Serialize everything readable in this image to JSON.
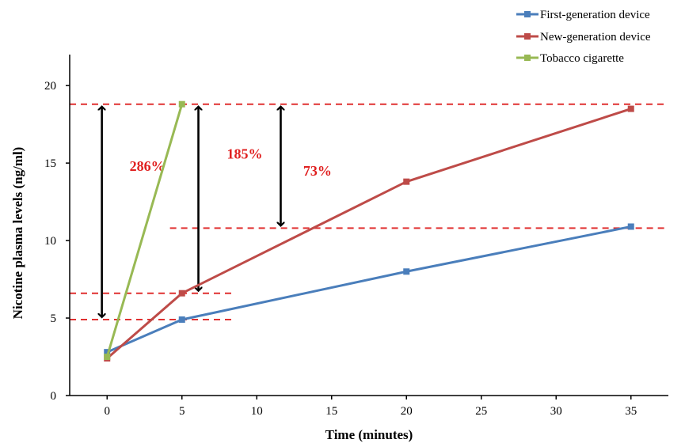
{
  "chart_data": {
    "type": "line",
    "xlabel": "Time (minutes)",
    "ylabel": "Nicotine plasma levels (ng/ml)",
    "xlim": [
      -2.5,
      37.5
    ],
    "ylim": [
      0,
      22
    ],
    "xticks": [
      0,
      5,
      10,
      15,
      20,
      25,
      30,
      35
    ],
    "yticks": [
      0,
      5,
      10,
      15,
      20
    ],
    "grid": false,
    "legend_position": "top-right",
    "series": [
      {
        "name": "First-generation device",
        "color": "#4a7ebb",
        "x": [
          0,
          5,
          20,
          35
        ],
        "y": [
          2.8,
          4.9,
          8.0,
          10.9
        ]
      },
      {
        "name": "New-generation device",
        "color": "#be4b48",
        "x": [
          0,
          5,
          20,
          35
        ],
        "y": [
          2.4,
          6.6,
          13.8,
          18.5
        ]
      },
      {
        "name": "Tobacco cigarette",
        "color": "#98b954",
        "x": [
          0,
          5
        ],
        "y": [
          2.5,
          18.8
        ]
      }
    ],
    "reference_lines": [
      {
        "y": 18.8,
        "x_from": -2.5,
        "x_to": 37.5
      },
      {
        "y": 10.8,
        "x_from": 4.2,
        "x_to": 37.5
      },
      {
        "y": 6.6,
        "x_from": -2.5,
        "x_to": 8.5
      },
      {
        "y": 4.9,
        "x_from": -2.5,
        "x_to": 8.5
      }
    ],
    "annotations": [
      {
        "label": "286%",
        "color": "#e02020",
        "arrow_x": -0.35,
        "y_from": 4.9,
        "y_to": 18.8,
        "label_x": 1.5,
        "label_y": 14.5
      },
      {
        "label": "185%",
        "color": "#e02020",
        "arrow_x": 6.1,
        "y_from": 6.6,
        "y_to": 18.8,
        "label_x": 8.0,
        "label_y": 15.3
      },
      {
        "label": "73%",
        "color": "#e02020",
        "arrow_x": 11.6,
        "y_from": 10.8,
        "y_to": 18.8,
        "label_x": 13.1,
        "label_y": 14.2
      }
    ]
  }
}
